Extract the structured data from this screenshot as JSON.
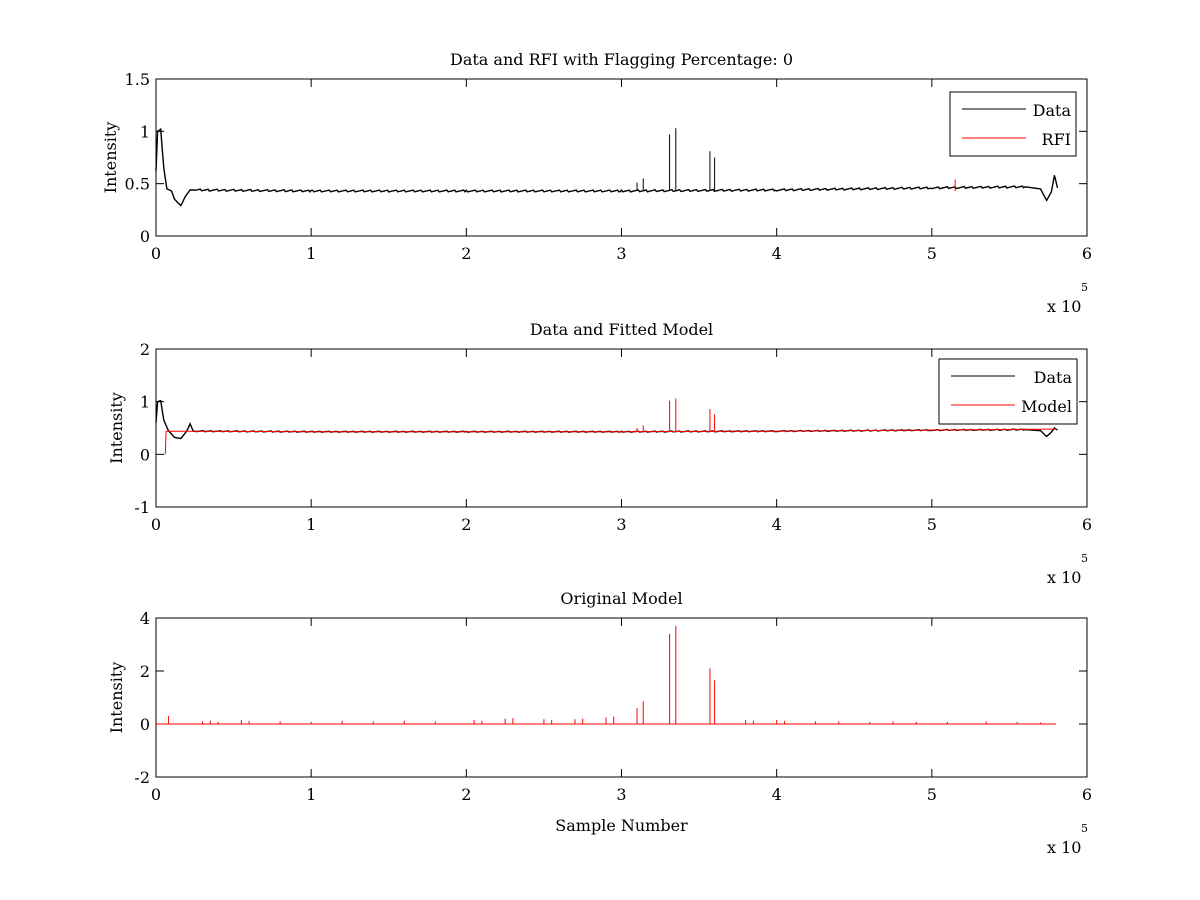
{
  "chart_data": [
    {
      "type": "line",
      "title": "Data and RFI with Flagging Percentage: 0",
      "xlabel": "",
      "ylabel": "Intensity",
      "xlim": [
        0,
        6
      ],
      "ylim": [
        0,
        1.5
      ],
      "x_ticks": [
        "0",
        "1",
        "2",
        "3",
        "4",
        "5",
        "6"
      ],
      "y_ticks": [
        "0",
        "0.5",
        "1",
        "1.5"
      ],
      "x_exponent_prefix": "x 10",
      "x_exponent_power": "5",
      "legend": {
        "position": "top-right",
        "entries": [
          "Data",
          "RFI"
        ]
      },
      "series": [
        {
          "name": "Data",
          "color": "#000000",
          "baseline": [
            [
              0,
              0.62
            ],
            [
              0.01,
              1.0
            ],
            [
              0.03,
              1.02
            ],
            [
              0.05,
              0.65
            ],
            [
              0.07,
              0.45
            ],
            [
              0.1,
              0.43
            ],
            [
              0.12,
              0.35
            ],
            [
              0.16,
              0.29
            ],
            [
              0.19,
              0.38
            ],
            [
              0.22,
              0.44
            ],
            [
              1,
              0.43
            ],
            [
              2,
              0.43
            ],
            [
              3,
              0.43
            ],
            [
              4,
              0.44
            ],
            [
              5,
              0.46
            ],
            [
              5.6,
              0.47
            ],
            [
              5.7,
              0.45
            ],
            [
              5.74,
              0.34
            ],
            [
              5.77,
              0.42
            ],
            [
              5.79,
              0.58
            ],
            [
              5.81,
              0.46
            ]
          ],
          "spikes": [
            [
              3.1,
              0.51
            ],
            [
              3.14,
              0.55
            ],
            [
              3.31,
              0.97
            ],
            [
              3.35,
              1.03
            ],
            [
              3.57,
              0.81
            ],
            [
              3.6,
              0.75
            ]
          ]
        },
        {
          "name": "RFI",
          "color": "#ff0000",
          "baseline": [],
          "spikes": [
            [
              5.15,
              0.54
            ]
          ]
        }
      ]
    },
    {
      "type": "line",
      "title": "Data and Fitted Model",
      "xlabel": "",
      "ylabel": "Intensity",
      "xlim": [
        0,
        6
      ],
      "ylim": [
        -1,
        2
      ],
      "x_ticks": [
        "0",
        "1",
        "2",
        "3",
        "4",
        "5",
        "6"
      ],
      "y_ticks": [
        "-1",
        "0",
        "1",
        "2"
      ],
      "x_exponent_prefix": "x 10",
      "x_exponent_power": "5",
      "legend": {
        "position": "top-right",
        "entries": [
          "Data",
          "Model"
        ]
      },
      "series": [
        {
          "name": "Data",
          "color": "#000000",
          "baseline": [
            [
              0,
              0.6
            ],
            [
              0.01,
              1.0
            ],
            [
              0.03,
              1.02
            ],
            [
              0.05,
              0.65
            ],
            [
              0.08,
              0.45
            ],
            [
              0.12,
              0.32
            ],
            [
              0.16,
              0.3
            ],
            [
              0.2,
              0.45
            ],
            [
              0.22,
              0.58
            ],
            [
              0.24,
              0.44
            ],
            [
              1,
              0.43
            ],
            [
              2,
              0.43
            ],
            [
              3,
              0.43
            ],
            [
              4,
              0.44
            ],
            [
              5,
              0.46
            ],
            [
              5.6,
              0.47
            ],
            [
              5.7,
              0.45
            ],
            [
              5.74,
              0.34
            ],
            [
              5.77,
              0.42
            ],
            [
              5.79,
              0.5
            ],
            [
              5.81,
              0.46
            ]
          ],
          "spikes": []
        },
        {
          "name": "Model",
          "color": "#ff0000",
          "baseline": [
            [
              0.06,
              0.0
            ],
            [
              0.065,
              0.44
            ],
            [
              1,
              0.43
            ],
            [
              2,
              0.43
            ],
            [
              3,
              0.43
            ],
            [
              4,
              0.44
            ],
            [
              5,
              0.46
            ],
            [
              5.8,
              0.48
            ]
          ],
          "spikes": [
            [
              3.1,
              0.5
            ],
            [
              3.14,
              0.55
            ],
            [
              3.31,
              1.02
            ],
            [
              3.35,
              1.06
            ],
            [
              3.57,
              0.86
            ],
            [
              3.6,
              0.76
            ]
          ]
        }
      ]
    },
    {
      "type": "line",
      "title": "Original Model",
      "xlabel": "Sample Number",
      "ylabel": "Intensity",
      "xlim": [
        0,
        6
      ],
      "ylim": [
        -2,
        4
      ],
      "x_ticks": [
        "0",
        "1",
        "2",
        "3",
        "4",
        "5",
        "6"
      ],
      "y_ticks": [
        "-2",
        "0",
        "2",
        "4"
      ],
      "x_exponent_prefix": "x 10",
      "x_exponent_power": "5",
      "legend": null,
      "series": [
        {
          "name": "Model",
          "color": "#ff0000",
          "baseline": [
            [
              0,
              0
            ],
            [
              5.8,
              0
            ]
          ],
          "spikes": [
            [
              0.08,
              0.3
            ],
            [
              0.3,
              0.1
            ],
            [
              0.35,
              0.12
            ],
            [
              0.4,
              0.08
            ],
            [
              0.55,
              0.15
            ],
            [
              0.6,
              0.12
            ],
            [
              0.8,
              0.1
            ],
            [
              1.0,
              0.08
            ],
            [
              1.2,
              0.12
            ],
            [
              1.4,
              0.1
            ],
            [
              1.6,
              0.12
            ],
            [
              1.8,
              0.1
            ],
            [
              2.05,
              0.15
            ],
            [
              2.1,
              0.12
            ],
            [
              2.25,
              0.2
            ],
            [
              2.3,
              0.22
            ],
            [
              2.5,
              0.18
            ],
            [
              2.55,
              0.15
            ],
            [
              2.7,
              0.18
            ],
            [
              2.75,
              0.2
            ],
            [
              2.9,
              0.25
            ],
            [
              2.95,
              0.28
            ],
            [
              3.1,
              0.6
            ],
            [
              3.14,
              0.85
            ],
            [
              3.31,
              3.4
            ],
            [
              3.35,
              3.7
            ],
            [
              3.57,
              2.1
            ],
            [
              3.6,
              1.65
            ],
            [
              3.8,
              0.15
            ],
            [
              3.85,
              0.12
            ],
            [
              4.0,
              0.15
            ],
            [
              4.05,
              0.12
            ],
            [
              4.25,
              0.1
            ],
            [
              4.4,
              0.1
            ],
            [
              4.6,
              0.08
            ],
            [
              4.75,
              0.1
            ],
            [
              4.9,
              0.08
            ],
            [
              5.1,
              0.08
            ],
            [
              5.35,
              0.1
            ],
            [
              5.55,
              0.08
            ],
            [
              5.7,
              0.06
            ]
          ]
        }
      ]
    }
  ]
}
